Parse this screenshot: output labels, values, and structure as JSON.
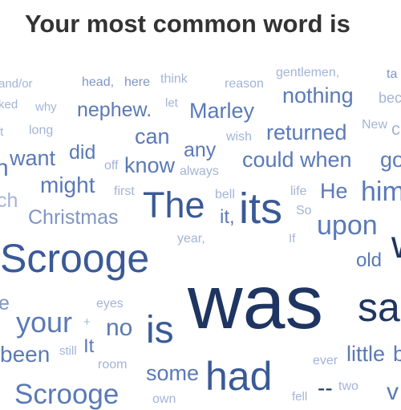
{
  "title": "Your most common word is",
  "palette": {
    "darkest": "#1f3561",
    "dark": "#3a5a96",
    "mid": "#5a7ab7",
    "light": "#7f96c4",
    "lightest": "#a3b4d6"
  },
  "words": [
    "and/or",
    "head,",
    "here",
    "think",
    "reason",
    "gentlemen,",
    "ta",
    "ked",
    "why",
    "nephew.",
    "let",
    "Marley",
    "nothing",
    "bec",
    "ft",
    "long",
    "wish",
    "returned",
    "New",
    "c",
    "can",
    "any",
    "want",
    "did",
    "off",
    "know",
    "always",
    "could",
    "when",
    "go",
    "h",
    "might",
    "first",
    "bell",
    "life",
    "He",
    "him",
    "ch",
    "The",
    "its",
    "Christmas",
    "it,",
    "So",
    "upon",
    "year,",
    "If",
    "old",
    "w",
    "Scrooge",
    "e",
    "eyes",
    "was",
    "sa",
    "your",
    "+",
    "no",
    "is",
    "been",
    "still",
    "It",
    "room",
    "ever",
    "little",
    "b",
    "some",
    "had",
    "Scrooge",
    "own",
    "fell",
    "--",
    "two",
    "v"
  ]
}
